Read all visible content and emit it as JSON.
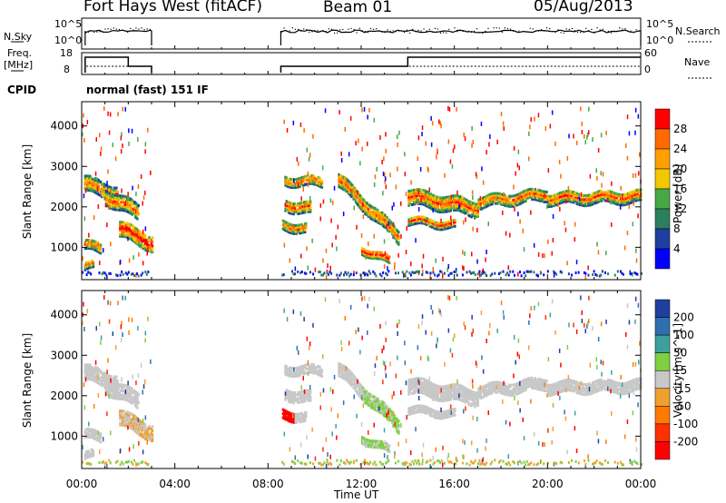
{
  "header": {
    "station": "Fort Hays West (fitACF)",
    "beam": "Beam 01",
    "date": "05/Aug/2013"
  },
  "strip_labels": {
    "nsky": "N.Sky",
    "nsky_ticks": [
      "10^5",
      "10^0"
    ],
    "nsearch": "N.Search",
    "nsearch_ticks": [
      "10^5",
      "10^0"
    ],
    "freq": "Freq.",
    "freq_unit": "[MHz]",
    "freq_ticks": [
      "18",
      "8"
    ],
    "nave": "Nave",
    "nave_ticks": [
      "60",
      "0"
    ],
    "cpid": "CPID",
    "cpid_value": "normal (fast) 151 IF"
  },
  "chart_data": [
    {
      "type": "heatmap",
      "name": "power-panel",
      "ylabel": "Slant Range [km]",
      "yticks": [
        1000,
        2000,
        3000,
        4000
      ],
      "ylim": [
        200,
        4600
      ],
      "xlim_hours": [
        0,
        24
      ],
      "colorbar": {
        "label": "Power [dB]",
        "ticks": [
          "28",
          "24",
          "20",
          "16",
          "12",
          "8",
          "4"
        ],
        "colors": [
          "#ff0000",
          "#ff6a00",
          "#ffa000",
          "#f2c800",
          "#48a848",
          "#2a7f5f",
          "#1f3fa0",
          "#0000ff"
        ]
      }
    },
    {
      "type": "heatmap",
      "name": "velocity-panel",
      "ylabel": "Slant Range [km]",
      "yticks": [
        1000,
        2000,
        3000,
        4000
      ],
      "ylim": [
        200,
        4600
      ],
      "xlim_hours": [
        0,
        24
      ],
      "xticks": [
        "00:00",
        "04:00",
        "08:00",
        "12:00",
        "16:00",
        "20:00",
        "00:00"
      ],
      "xlabel": "Time UT",
      "colorbar": {
        "label": "Velocity [m s^-1]",
        "ticks": [
          "200",
          "100",
          "50",
          "15",
          "-15",
          "-50",
          "-100",
          "-200"
        ],
        "colors": [
          "#1f3fa0",
          "#2f6fb0",
          "#3f9f9f",
          "#7fd040",
          "#c8c8c8",
          "#f0a030",
          "#ff7a00",
          "#ff3000",
          "#ff0000"
        ]
      }
    }
  ]
}
